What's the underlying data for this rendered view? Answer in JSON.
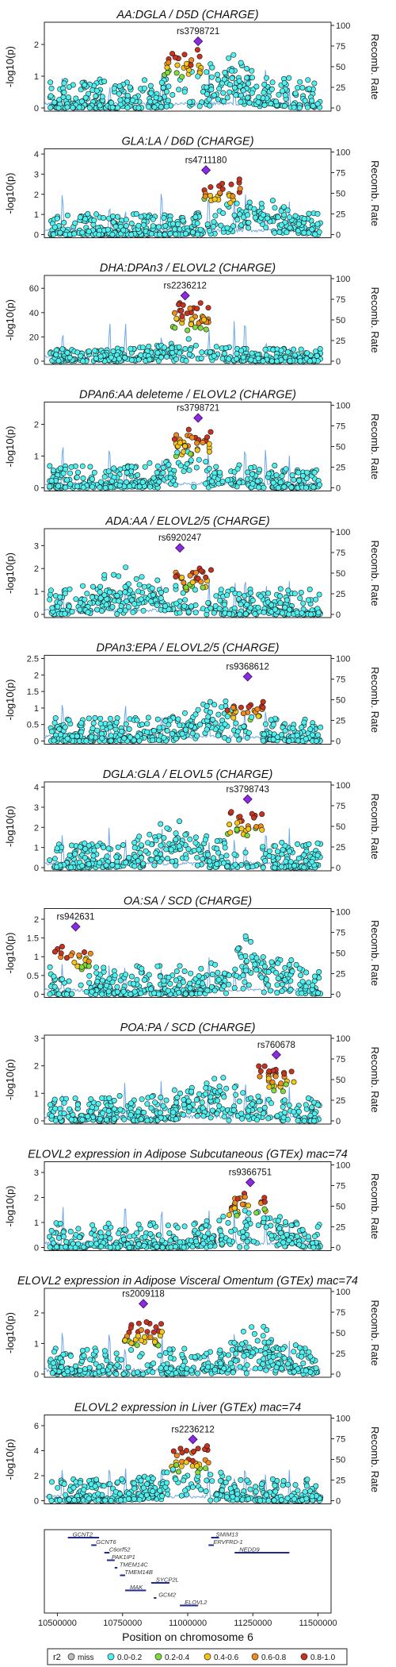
{
  "xaxis": {
    "label": "Position on chromosome 6",
    "range": [
      10450000,
      11550000
    ],
    "ticks": [
      10500000,
      10750000,
      11000000,
      11250000,
      11500000
    ],
    "tick_labels": [
      "10500000",
      "10750000",
      "11000000",
      "11250000",
      "11500000"
    ]
  },
  "ylabel": "-log10(p)",
  "y2label": "Recomb. Rate",
  "y2ticks": [
    0,
    25,
    50,
    75,
    100
  ],
  "legend": {
    "title": "r2",
    "entries": [
      {
        "label": "miss",
        "color": "#bdbdbd"
      },
      {
        "label": "0.0-0.2",
        "color": "#4ff0f0"
      },
      {
        "label": "0.2-0.4",
        "color": "#7fdc3a"
      },
      {
        "label": "0.4-0.6",
        "color": "#f5c518"
      },
      {
        "label": "0.6-0.8",
        "color": "#f08a1c"
      },
      {
        "label": "0.8-1.0",
        "color": "#c8321e"
      }
    ],
    "lead_color": "#8a2be2"
  },
  "chart_data": [
    {
      "type": "scatter",
      "title": "AA:DGLA / D5D (CHARGE)",
      "ylim": [
        0,
        2.6
      ],
      "yticks": [
        0,
        1,
        2
      ],
      "lead": {
        "snp": "rs3798721",
        "x": 11040000,
        "y": 2.1
      },
      "peak": {
        "x": 10980000,
        "y": 1.8
      },
      "hotspot": {
        "x": 11150000,
        "y": 1.3
      }
    },
    {
      "type": "scatter",
      "title": "GLA:LA / D6D (CHARGE)",
      "ylim": [
        0,
        4.1
      ],
      "yticks": [
        0,
        1,
        2,
        3,
        4
      ],
      "lead": {
        "snp": "rs4711180",
        "x": 11070000,
        "y": 3.2
      },
      "peak": {
        "x": 11130000,
        "y": 2.7
      },
      "hotspot": {
        "x": 11250000,
        "y": 1.5
      }
    },
    {
      "type": "scatter",
      "title": "DHA:DPAn3 / ELOVL2 (CHARGE)",
      "ylim": [
        0,
        68
      ],
      "yticks": [
        0,
        20,
        40,
        60
      ],
      "lead": {
        "snp": "rs2236212",
        "x": 10990000,
        "y": 54
      },
      "peak": {
        "x": 11010000,
        "y": 48
      },
      "hotspot": {
        "x": 11000000,
        "y": 15
      }
    },
    {
      "type": "scatter",
      "title": "DPAn6:AA deleteme / ELOVL2 (CHARGE)",
      "ylim": [
        0,
        2.6
      ],
      "yticks": [
        0,
        1,
        2
      ],
      "lead": {
        "snp": "rs3798721",
        "x": 11040000,
        "y": 2.2
      },
      "peak": {
        "x": 11020000,
        "y": 1.9
      },
      "hotspot": {
        "x": 11000000,
        "y": 1.0
      }
    },
    {
      "type": "scatter",
      "title": "ADA:AA / ELOVL2/5 (CHARGE)",
      "ylim": [
        0,
        3.6
      ],
      "yticks": [
        0,
        1,
        2,
        3
      ],
      "lead": {
        "snp": "rs6920247",
        "x": 10970000,
        "y": 2.9
      },
      "peak": {
        "x": 11020000,
        "y": 2.0
      },
      "hotspot": {
        "x": 10780000,
        "y": 1.6
      }
    },
    {
      "type": "scatter",
      "title": "DPAn3:EPA / ELOVL2/5 (CHARGE)",
      "ylim": [
        0,
        2.5
      ],
      "yticks": [
        0.0,
        0.5,
        1.0,
        1.5,
        2.0,
        2.5
      ],
      "lead": {
        "snp": "rs9368612",
        "x": 11230000,
        "y": 1.95
      },
      "peak": {
        "x": 11220000,
        "y": 1.2
      },
      "hotspot": {
        "x": 11100000,
        "y": 1.0
      }
    },
    {
      "type": "scatter",
      "title": "DGLA:GLA / ELOVL5 (CHARGE)",
      "ylim": [
        0,
        4.1
      ],
      "yticks": [
        0,
        1,
        2,
        3,
        4
      ],
      "lead": {
        "snp": "rs3798743",
        "x": 11230000,
        "y": 3.4
      },
      "peak": {
        "x": 11220000,
        "y": 3.0
      },
      "hotspot": {
        "x": 10950000,
        "y": 1.8
      }
    },
    {
      "type": "scatter",
      "title": "OA:SA / SCD (CHARGE)",
      "ylim": [
        0,
        2.2
      ],
      "yticks": [
        0.0,
        0.5,
        1.0,
        1.5,
        2.0
      ],
      "lead": {
        "snp": "rs942631",
        "x": 10570000,
        "y": 1.8
      },
      "peak": {
        "x": 10560000,
        "y": 1.3
      },
      "hotspot": {
        "x": 11250000,
        "y": 1.1
      }
    },
    {
      "type": "scatter",
      "title": "POA:PA / SCD (CHARGE)",
      "ylim": [
        0,
        3.0
      ],
      "yticks": [
        0,
        1,
        2,
        3
      ],
      "lead": {
        "snp": "rs760678",
        "x": 11340000,
        "y": 2.4
      },
      "peak": {
        "x": 11340000,
        "y": 2.0
      },
      "hotspot": {
        "x": 11100000,
        "y": 1.3
      }
    },
    {
      "type": "scatter",
      "title": "ELOVL2 expression in Adipose Subcutaneous (GTEx) mac=74",
      "ylim": [
        0,
        3.3
      ],
      "yticks": [
        0,
        1,
        2,
        3
      ],
      "lead": {
        "snp": "rs9366751",
        "x": 11240000,
        "y": 2.6
      },
      "peak": {
        "x": 11230000,
        "y": 2.2
      },
      "hotspot": {
        "x": 11250000,
        "y": 1.4
      }
    },
    {
      "type": "scatter",
      "title": "ELOVL2 expression in Adipose Visceral Omentum (GTEx) mac=74",
      "ylim": [
        0,
        2.7
      ],
      "yticks": [
        0,
        1,
        2
      ],
      "lead": {
        "snp": "rs2009118",
        "x": 10830000,
        "y": 2.3
      },
      "peak": {
        "x": 10830000,
        "y": 1.7
      },
      "hotspot": {
        "x": 11250000,
        "y": 1.2
      }
    },
    {
      "type": "scatter",
      "title": "ELOVL2 expression in Liver (GTEx) mac=74",
      "ylim": [
        0,
        6.6
      ],
      "yticks": [
        0,
        2,
        4,
        6
      ],
      "lead": {
        "snp": "rs2236212",
        "x": 11020000,
        "y": 4.9
      },
      "peak": {
        "x": 11010000,
        "y": 4.2
      },
      "hotspot": {
        "x": 11000000,
        "y": 2.5
      }
    }
  ],
  "genes": [
    {
      "name": "GCNT2",
      "start": 10540000,
      "end": 10660000,
      "row": 0
    },
    {
      "name": "SMIM13",
      "start": 11090000,
      "end": 11120000,
      "row": 0
    },
    {
      "name": "ERVFRD-1",
      "start": 11080000,
      "end": 11100000,
      "row": 1
    },
    {
      "name": "NEDD9",
      "start": 11180000,
      "end": 11390000,
      "row": 2
    },
    {
      "name": "GCNT6",
      "start": 10630000,
      "end": 10650000,
      "row": 1
    },
    {
      "name": "C6orf52",
      "start": 10680000,
      "end": 10700000,
      "row": 2
    },
    {
      "name": "PAK1IP1",
      "start": 10690000,
      "end": 10720000,
      "row": 3
    },
    {
      "name": "TMEM14C",
      "start": 10720000,
      "end": 10730000,
      "row": 4
    },
    {
      "name": "TMEM14B",
      "start": 10740000,
      "end": 10760000,
      "row": 5
    },
    {
      "name": "SYCP2L",
      "start": 10860000,
      "end": 10930000,
      "row": 6
    },
    {
      "name": "MAK",
      "start": 10760000,
      "end": 10840000,
      "row": 7
    },
    {
      "name": "GCM2",
      "start": 10870000,
      "end": 10880000,
      "row": 8
    },
    {
      "name": "ELOVL2",
      "start": 10970000,
      "end": 11040000,
      "row": 9
    }
  ]
}
